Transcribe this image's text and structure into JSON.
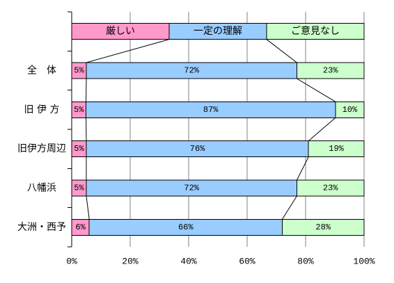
{
  "chart_data": {
    "type": "bar",
    "orientation": "horizontal",
    "stacked": "percent",
    "categories": [
      "全　体",
      "旧 伊 方",
      "旧伊方周辺",
      "八幡浜",
      "大洲・西予"
    ],
    "series": [
      {
        "name": "厳しい",
        "color": "#FF99CC",
        "values": [
          5,
          5,
          5,
          5,
          6
        ]
      },
      {
        "name": "一定の理解",
        "color": "#99CCFF",
        "values": [
          72,
          87,
          76,
          72,
          66
        ]
      },
      {
        "name": "ご意見なし",
        "color": "#CCFFCC",
        "values": [
          23,
          10,
          19,
          23,
          28
        ]
      }
    ],
    "value_suffix": "%",
    "xlim": [
      0,
      100
    ],
    "xticks": [
      0,
      20,
      40,
      60,
      80,
      100
    ],
    "xtick_labels": [
      "0%",
      "20%",
      "40%",
      "60%",
      "80%",
      "100%"
    ],
    "grid": true,
    "legend": "top",
    "series_lines": true,
    "colors": {
      "axis": "#000000",
      "grid": "#808080",
      "outline": "#000000"
    }
  }
}
